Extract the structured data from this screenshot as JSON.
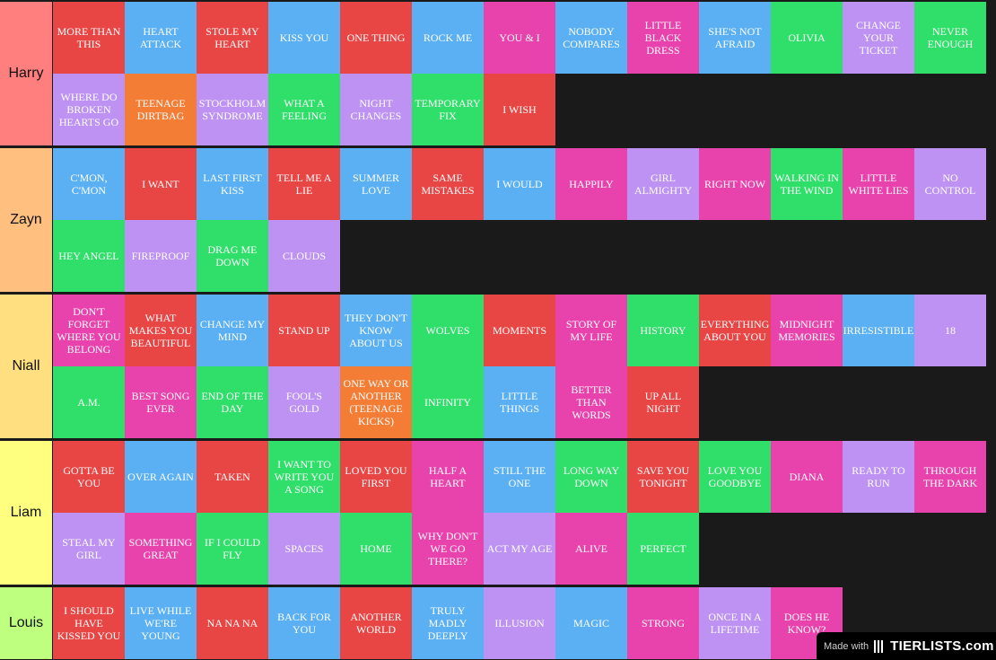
{
  "colors": {
    "red": "#e84545",
    "blue": "#5ab0f2",
    "pink": "#e843ac",
    "green": "#30de6a",
    "purple": "#bd92f3",
    "orange": "#f37d35"
  },
  "tiers": [
    {
      "name": "Harry",
      "color": "#ff7f7f",
      "rows": [
        [
          [
            "MORE THAN THIS",
            "red"
          ],
          [
            "HEART ATTACK",
            "blue"
          ],
          [
            "STOLE MY HEART",
            "red"
          ],
          [
            "KISS YOU",
            "blue"
          ],
          [
            "ONE THING",
            "red"
          ],
          [
            "ROCK ME",
            "blue"
          ],
          [
            "YOU & I",
            "pink"
          ],
          [
            "NOBODY COMPARES",
            "blue"
          ],
          [
            "LITTLE BLACK DRESS",
            "pink"
          ],
          [
            "SHE'S NOT AFRAID",
            "blue"
          ],
          [
            "OLIVIA",
            "green"
          ],
          [
            "CHANGE YOUR TICKET",
            "purple"
          ],
          [
            "NEVER ENOUGH",
            "green"
          ]
        ],
        [
          [
            "WHERE DO BROKEN HEARTS GO",
            "purple"
          ],
          [
            "TEENAGE DIRTBAG",
            "orange"
          ],
          [
            "STOCKHOLM SYNDROME",
            "purple"
          ],
          [
            "WHAT A FEELING",
            "green"
          ],
          [
            "NIGHT CHANGES",
            "purple"
          ],
          [
            "TEMPORARY FIX",
            "green"
          ],
          [
            "I WISH",
            "red"
          ]
        ]
      ]
    },
    {
      "name": "Zayn",
      "color": "#ffbf7f",
      "rows": [
        [
          [
            "C'MON, C'MON",
            "blue"
          ],
          [
            "I WANT",
            "red"
          ],
          [
            "LAST FIRST KISS",
            "blue"
          ],
          [
            "TELL ME A LIE",
            "red"
          ],
          [
            "SUMMER LOVE",
            "blue"
          ],
          [
            "SAME MISTAKES",
            "red"
          ],
          [
            "I WOULD",
            "blue"
          ],
          [
            "HAPPILY",
            "pink"
          ],
          [
            "GIRL ALMIGHTY",
            "purple"
          ],
          [
            "RIGHT NOW",
            "pink"
          ],
          [
            "WALKING IN THE WIND",
            "green"
          ],
          [
            "LITTLE WHITE LIES",
            "pink"
          ],
          [
            "NO CONTROL",
            "purple"
          ]
        ],
        [
          [
            "HEY ANGEL",
            "green"
          ],
          [
            "FIREPROOF",
            "purple"
          ],
          [
            "DRAG ME DOWN",
            "green"
          ],
          [
            "CLOUDS",
            "purple"
          ]
        ]
      ]
    },
    {
      "name": "Niall",
      "color": "#ffdf7f",
      "rows": [
        [
          [
            "DON'T FORGET WHERE YOU BELONG",
            "pink"
          ],
          [
            "WHAT MAKES YOU BEAUTIFUL",
            "red"
          ],
          [
            "CHANGE MY MIND",
            "blue"
          ],
          [
            "STAND UP",
            "red"
          ],
          [
            "THEY DON'T KNOW ABOUT US",
            "blue"
          ],
          [
            "WOLVES",
            "green"
          ],
          [
            "MOMENTS",
            "red"
          ],
          [
            "STORY OF MY LIFE",
            "pink"
          ],
          [
            "HISTORY",
            "green"
          ],
          [
            "EVERYTHING ABOUT YOU",
            "red"
          ],
          [
            "MIDNIGHT MEMORIES",
            "pink"
          ],
          [
            "IRRESISTIBLE",
            "blue"
          ],
          [
            "18",
            "purple"
          ]
        ],
        [
          [
            "A.M.",
            "green"
          ],
          [
            "BEST SONG EVER",
            "pink"
          ],
          [
            "END OF THE DAY",
            "green"
          ],
          [
            "FOOL'S GOLD",
            "purple"
          ],
          [
            "ONE WAY OR ANOTHER (TEENAGE KICKS)",
            "orange"
          ],
          [
            "INFINITY",
            "green"
          ],
          [
            "LITTLE THINGS",
            "blue"
          ],
          [
            "BETTER THAN WORDS",
            "pink"
          ],
          [
            "UP ALL NIGHT",
            "red"
          ]
        ]
      ]
    },
    {
      "name": "Liam",
      "color": "#ffff7f",
      "rows": [
        [
          [
            "GOTTA BE YOU",
            "red"
          ],
          [
            "OVER AGAIN",
            "blue"
          ],
          [
            "TAKEN",
            "red"
          ],
          [
            "I WANT TO WRITE YOU A SONG",
            "green"
          ],
          [
            "LOVED YOU FIRST",
            "red"
          ],
          [
            "HALF A HEART",
            "pink"
          ],
          [
            "STILL THE ONE",
            "blue"
          ],
          [
            "LONG WAY DOWN",
            "green"
          ],
          [
            "SAVE YOU TONIGHT",
            "red"
          ],
          [
            "LOVE YOU GOODBYE",
            "green"
          ],
          [
            "DIANA",
            "pink"
          ],
          [
            "READY TO RUN",
            "purple"
          ],
          [
            "THROUGH THE DARK",
            "pink"
          ]
        ],
        [
          [
            "STEAL MY GIRL",
            "purple"
          ],
          [
            "SOMETHING GREAT",
            "pink"
          ],
          [
            "IF I COULD FLY",
            "green"
          ],
          [
            "SPACES",
            "purple"
          ],
          [
            "HOME",
            "green"
          ],
          [
            "WHY DON'T WE GO THERE?",
            "pink"
          ],
          [
            "ACT MY AGE",
            "purple"
          ],
          [
            "ALIVE",
            "pink"
          ],
          [
            "PERFECT",
            "green"
          ]
        ]
      ]
    },
    {
      "name": "Louis",
      "color": "#bfff7f",
      "rows": [
        [
          [
            "I SHOULD HAVE KISSED YOU",
            "red"
          ],
          [
            "LIVE WHILE WE'RE YOUNG",
            "blue"
          ],
          [
            "NA NA NA",
            "red"
          ],
          [
            "BACK FOR YOU",
            "blue"
          ],
          [
            "ANOTHER WORLD",
            "red"
          ],
          [
            "TRULY MADLY DEEPLY",
            "blue"
          ],
          [
            "ILLUSION",
            "purple"
          ],
          [
            "MAGIC",
            "blue"
          ],
          [
            "STRONG",
            "pink"
          ],
          [
            "ONCE IN A LIFETIME",
            "purple"
          ],
          [
            "DOES HE KNOW?",
            "pink"
          ]
        ]
      ]
    }
  ],
  "watermark": {
    "made_with": "Made with",
    "brand": "TIERLISTS.com"
  }
}
